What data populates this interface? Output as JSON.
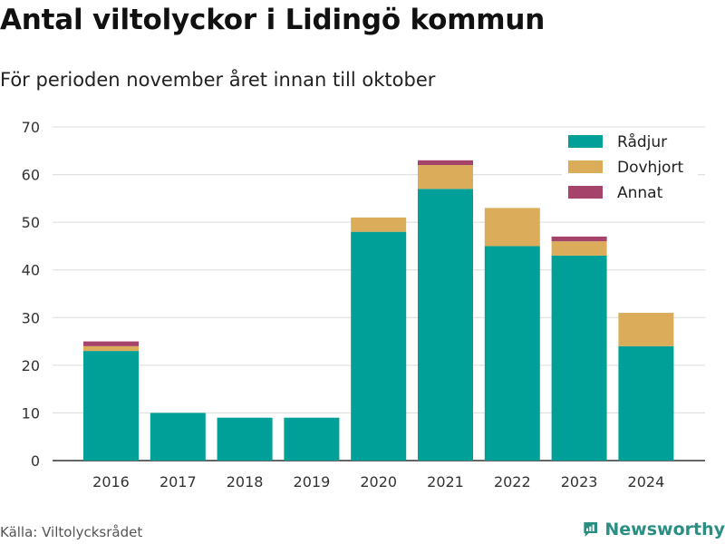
{
  "header": {
    "title": "Antal viltolyckor i Lidingö kommun",
    "subtitle": "För perioden november året innan till oktober"
  },
  "footer": {
    "source": "Källa: Viltolycksrådet",
    "brand": "Newsworthy",
    "brand_icon": "newsworthy-logo-icon",
    "brand_color": "#2a8f83"
  },
  "chart_data": {
    "type": "bar",
    "stacked": true,
    "title": "Antal viltolyckor i Lidingö kommun",
    "subtitle": "För perioden november året innan till oktober",
    "xlabel": "",
    "ylabel": "",
    "categories": [
      "2016",
      "2017",
      "2018",
      "2019",
      "2020",
      "2021",
      "2022",
      "2023",
      "2024"
    ],
    "series": [
      {
        "name": "Rådjur",
        "color": "#00a098",
        "values": [
          23,
          10,
          9,
          9,
          48,
          57,
          45,
          43,
          24
        ]
      },
      {
        "name": "Dovhjort",
        "color": "#dbad5a",
        "values": [
          1,
          0,
          0,
          0,
          3,
          5,
          8,
          3,
          7
        ]
      },
      {
        "name": "Annat",
        "color": "#a5436a",
        "values": [
          1,
          0,
          0,
          0,
          0,
          1,
          0,
          1,
          0
        ]
      }
    ],
    "ylim": [
      0,
      70
    ],
    "yticks": [
      0,
      10,
      20,
      30,
      40,
      50,
      60,
      70
    ],
    "grid": true,
    "legend_position": "top-right"
  }
}
